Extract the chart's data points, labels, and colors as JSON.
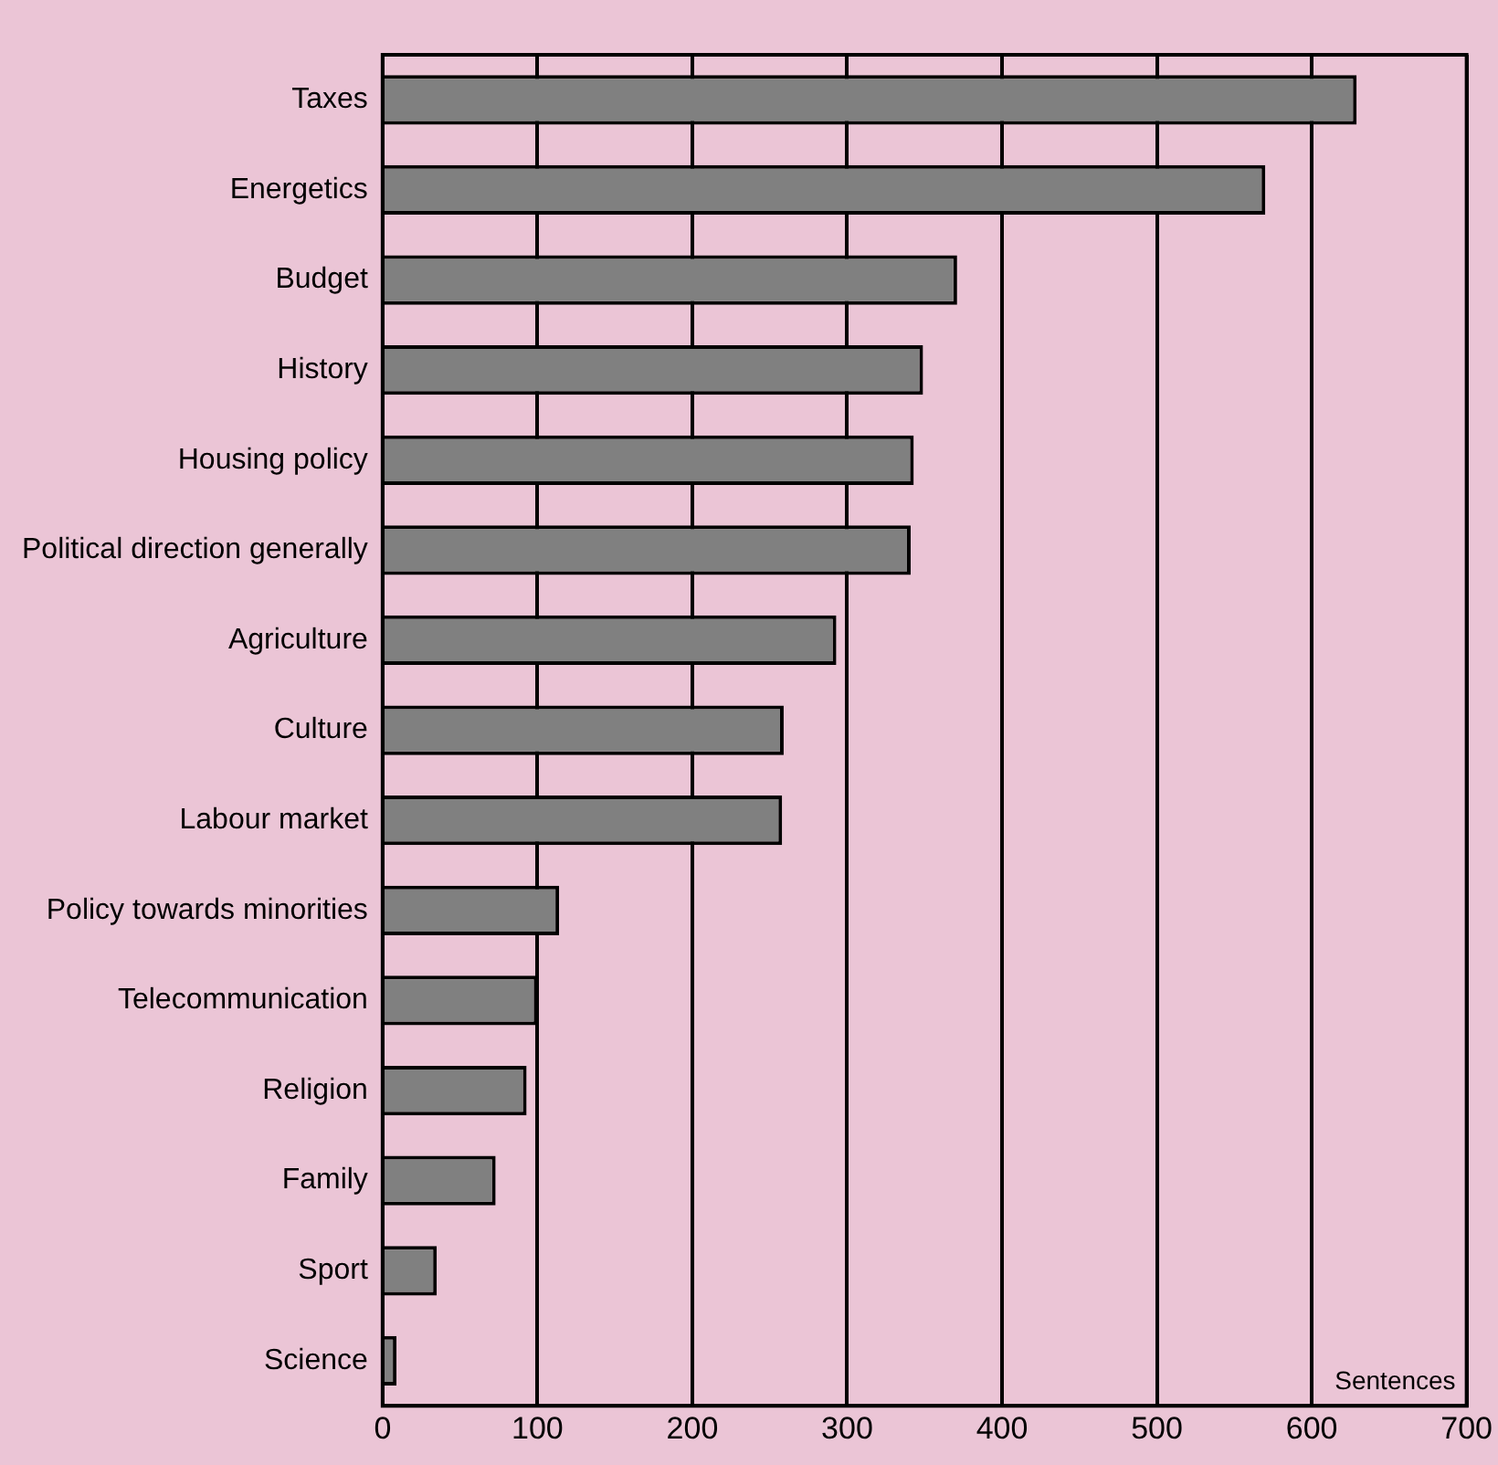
{
  "chart_data": {
    "type": "bar",
    "orientation": "horizontal",
    "xlabel": "Sentences",
    "categories": [
      "Taxes",
      "Energetics",
      "Budget",
      "History",
      "Housing policy",
      "Political direction generally",
      "Agriculture",
      "Culture",
      "Labour market",
      "Policy towards minorities",
      "Telecommunication",
      "Religion",
      "Family",
      "Sport",
      "Science"
    ],
    "values": [
      629,
      570,
      371,
      349,
      343,
      341,
      293,
      259,
      258,
      114,
      100,
      93,
      73,
      35,
      9
    ],
    "color": "#808080",
    "xlim": [
      0,
      700
    ],
    "xticks": [
      0,
      100,
      200,
      300,
      400,
      500,
      600,
      700
    ],
    "grid": "x",
    "legend": false
  }
}
